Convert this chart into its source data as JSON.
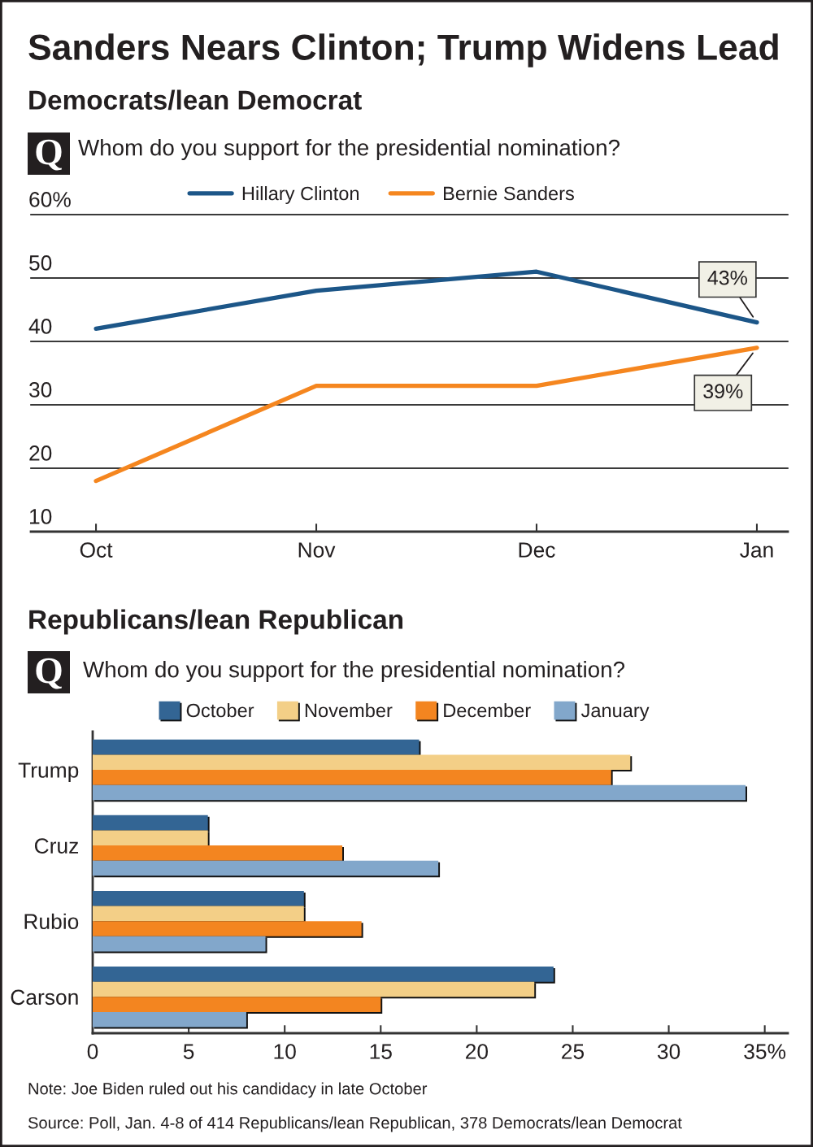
{
  "chart_data": [
    {
      "type": "line",
      "title": "Sanders Nears Clinton; Trump Widens Lead",
      "subtitle": "Democrats/lean Democrat",
      "annotations": [
        "Q",
        "Whom do you support for the presidential nomination?"
      ],
      "categories": [
        "Oct",
        "Nov",
        "Dec",
        "Jan"
      ],
      "series": [
        {
          "name": "Hillary Clinton",
          "color": "#1c5688",
          "values": [
            42,
            48,
            51,
            43
          ],
          "value_labels": [
            null,
            null,
            null,
            "43%"
          ]
        },
        {
          "name": "Bernie Sanders",
          "color": "#f5861f",
          "values": [
            18,
            33,
            33,
            39
          ],
          "value_labels": [
            null,
            null,
            null,
            "39%"
          ]
        }
      ],
      "ylim": [
        10,
        60
      ],
      "yticks": [
        10,
        20,
        30,
        40,
        50,
        {
          "value": 60,
          "label": "60%"
        }
      ],
      "grid": "y",
      "legend": "top"
    },
    {
      "type": "bar",
      "orientation": "horizontal",
      "title": "Republicans/lean Republican",
      "annotations": [
        "Q",
        "Whom do you support for the presidential nomination?",
        "Note: Joe Biden ruled out his candidacy in late October",
        "Source: Poll, Jan. 4-8 of 414 Republicans/lean Republican, 378 Democrats/lean Democrat"
      ],
      "categories": [
        "Trump",
        "Cruz",
        "Rubio",
        "Carson"
      ],
      "series": [
        {
          "name": "October",
          "color": "#336594",
          "values": [
            17,
            6,
            11,
            24
          ]
        },
        {
          "name": "November",
          "color": "#f3cf87",
          "values": [
            28,
            6,
            11,
            23
          ]
        },
        {
          "name": "December",
          "color": "#f38520",
          "values": [
            27,
            13,
            14,
            15
          ]
        },
        {
          "name": "January",
          "color": "#82a7cb",
          "values": [
            34,
            18,
            9,
            8
          ]
        }
      ],
      "xlim": [
        0,
        36.2
      ],
      "xticks": [
        0,
        5,
        10,
        15,
        20,
        25,
        30,
        {
          "value": 35,
          "label": "35%"
        }
      ],
      "legend": "top"
    }
  ]
}
